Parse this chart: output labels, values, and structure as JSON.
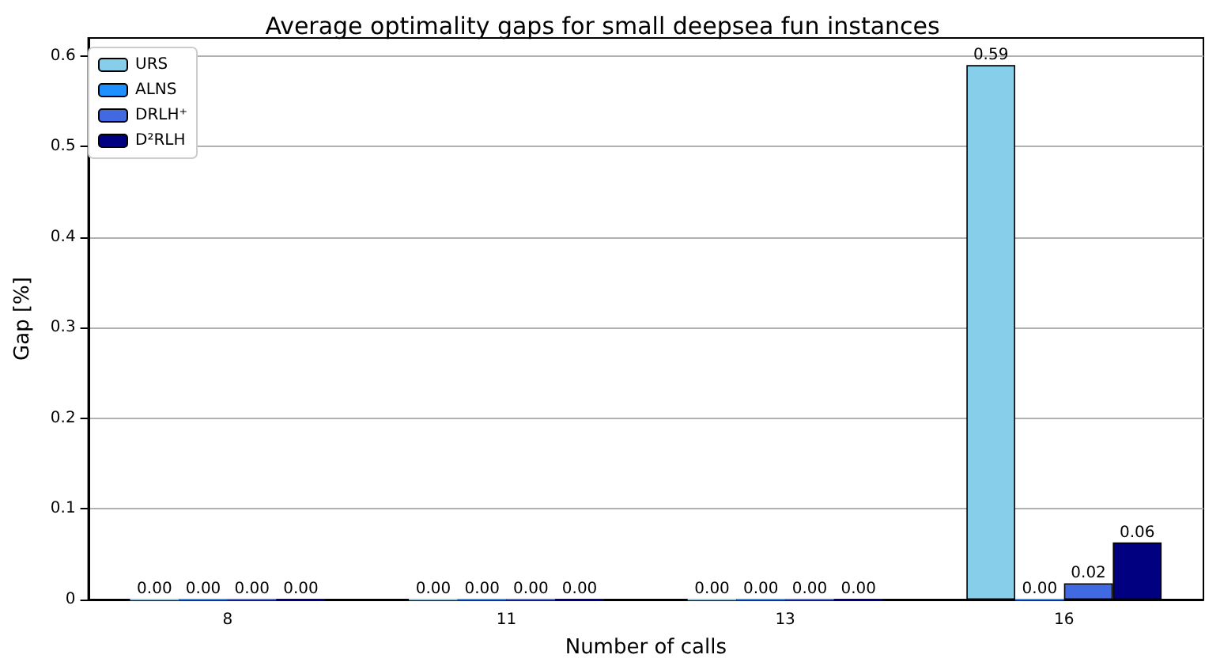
{
  "chart_data": {
    "type": "bar",
    "title": "Average optimality gaps for small deepsea fun instances",
    "xlabel": "Number of calls",
    "ylabel": "Gap [%]",
    "categories": [
      "8",
      "11",
      "13",
      "16"
    ],
    "series": [
      {
        "name": "URS",
        "color": "#87ceeb",
        "values": [
          0.0,
          0.0,
          0.0,
          0.59
        ],
        "value_labels": [
          "0.00",
          "0.00",
          "0.00",
          "0.59"
        ]
      },
      {
        "name": "ALNS",
        "color": "#1e90ff",
        "values": [
          0.0,
          0.0,
          0.0,
          0.0
        ],
        "value_labels": [
          "0.00",
          "0.00",
          "0.00",
          "0.00"
        ]
      },
      {
        "name": "DRLH⁺",
        "color": "#4169e1",
        "values": [
          0.0,
          0.0,
          0.0,
          0.018
        ],
        "value_labels": [
          "0.00",
          "0.00",
          "0.00",
          "0.02"
        ]
      },
      {
        "name": "D²RLH",
        "color": "#000080",
        "values": [
          0.0,
          0.0,
          0.0,
          0.063
        ],
        "value_labels": [
          "0.00",
          "0.00",
          "0.00",
          "0.06"
        ]
      }
    ],
    "ylim": [
      0,
      0.62
    ],
    "yticks": [
      0,
      0.1,
      0.2,
      0.3,
      0.4,
      0.5,
      0.6
    ],
    "grid": "y",
    "legend": "top left"
  }
}
